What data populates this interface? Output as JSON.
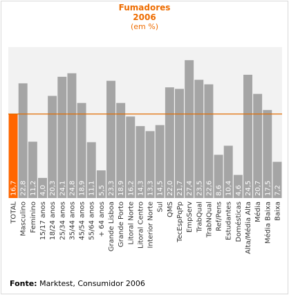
{
  "title": "Fumadores",
  "subtitle": "2006",
  "unit_note": "(em %)",
  "source_label": "Fonte:",
  "source_text": "Marktest, Consumidor 2006",
  "colors": {
    "highlight_bar": "#ff6600",
    "bar": "#a5a5a5",
    "reference_line": "#e06c00",
    "plot_background": "#f2f2f2",
    "value_label": "#ffffff",
    "title": "#ee6c00"
  },
  "chart_data": {
    "type": "bar",
    "title": "Fumadores 2006",
    "subtitle": "(em %)",
    "categories": [
      "TOTAL",
      "Masculino",
      "Feminino",
      "15/17 anos",
      "18/24 anos",
      "25/34 anos",
      "35/44 anos",
      "45/54 anos",
      "55/64 anos",
      "+ 64 anos",
      "Grande Lisboa",
      "Grande Porto",
      "Litoral Norte",
      "Litoral Centro",
      "Interior Norte",
      "Sul",
      "QMS",
      "TecEspPqPp",
      "EmpServ",
      "TrabQual",
      "TrabNQual",
      "Ref/Pens",
      "Estudantes",
      "Domésticas",
      "Alta/Média Alta",
      "Média",
      "Média Baixa",
      "Baixa"
    ],
    "values": [
      16.7,
      22.8,
      11.2,
      4.0,
      20.3,
      24.1,
      24.8,
      18.9,
      11.1,
      5.5,
      23.3,
      18.9,
      16.2,
      14.3,
      13.3,
      14.5,
      22.0,
      21.7,
      27.4,
      23.5,
      22.6,
      8.6,
      10.4,
      4.6,
      24.5,
      20.7,
      17.5,
      7.2
    ],
    "value_labels": [
      "16,7",
      "22,8",
      "11,2",
      "4,0",
      "20,3",
      "24,1",
      "24,8",
      "18,9",
      "11,1",
      "5,5",
      "23,3",
      "18,9",
      "16,2",
      "14,3",
      "13,3",
      "14,5",
      "22,0",
      "21,7",
      "27,4",
      "23,5",
      "22,6",
      "8,6",
      "10,4",
      "4,6",
      "24,5",
      "20,7",
      "17,5",
      "7,2"
    ],
    "highlight_index": 0,
    "reference_line_value": 16.7,
    "ylim": [
      0,
      30
    ],
    "xlabel": "",
    "ylabel": "",
    "grid": false,
    "legend": "none"
  }
}
